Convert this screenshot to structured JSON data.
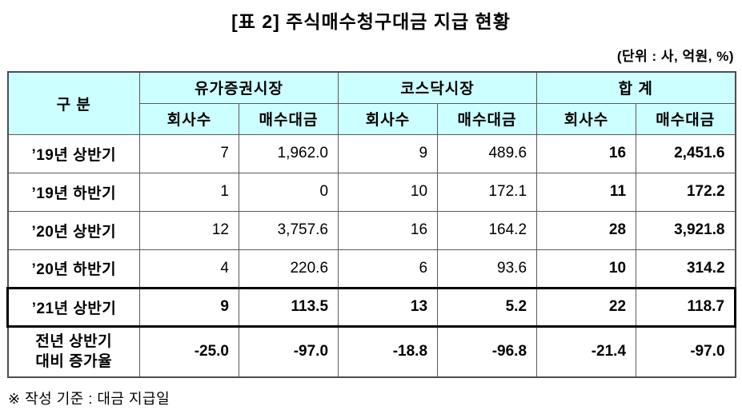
{
  "title": "[표 2] 주식매수청구대금 지급 현황",
  "unit_note": "(단위 : 사, 억원, %)",
  "colors": {
    "header_bg": "#CCFFFF",
    "border": "#5A5A5A",
    "highlight_border": "#000000"
  },
  "table": {
    "header": {
      "category": "구   분",
      "groups": [
        "유가증권시장",
        "코스닥시장",
        "합   계"
      ],
      "subcols": [
        "회사수",
        "매수대금"
      ]
    },
    "rows": [
      {
        "label": "’19년 상반기",
        "values": [
          "7",
          "1,962.0",
          "9",
          "489.6",
          "16",
          "2,451.6"
        ]
      },
      {
        "label": "’19년 하반기",
        "values": [
          "1",
          "0",
          "10",
          "172.1",
          "11",
          "172.2"
        ]
      },
      {
        "label": "’20년 상반기",
        "values": [
          "12",
          "3,757.6",
          "16",
          "164.2",
          "28",
          "3,921.8"
        ]
      },
      {
        "label": "’20년 하반기",
        "values": [
          "4",
          "220.6",
          "6",
          "93.6",
          "10",
          "314.2"
        ]
      },
      {
        "label": "’21년 상반기",
        "values": [
          "9",
          "113.5",
          "13",
          "5.2",
          "22",
          "118.7"
        ]
      },
      {
        "label": "전년 상반기\n대비 증가율",
        "values": [
          "-25.0",
          "-97.0",
          "-18.8",
          "-96.8",
          "-21.4",
          "-97.0"
        ]
      }
    ]
  },
  "footnote": "※ 작성 기준 : 대금 지급일"
}
